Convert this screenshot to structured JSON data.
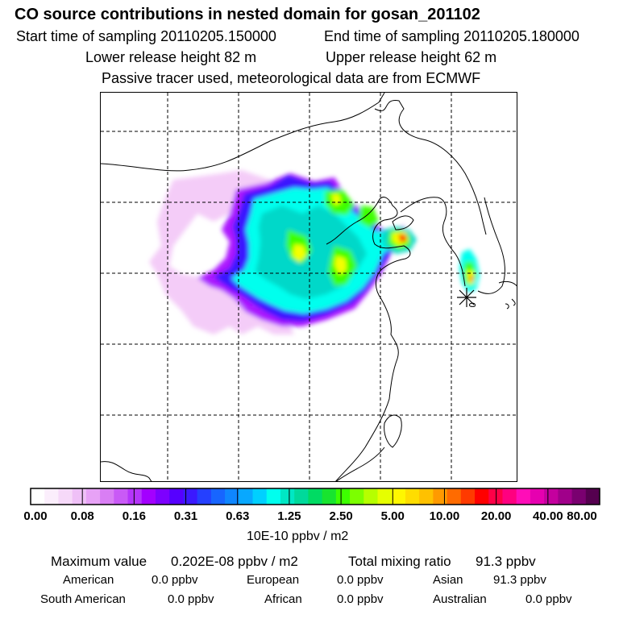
{
  "header": {
    "title": "CO  source contributions in nested domain for gosan_201102",
    "start_time": "Start time of sampling 20110205.150000",
    "end_time": "End time of sampling 20110205.180000",
    "lower_height": "Lower release height   82 m",
    "upper_height": "Upper release height   62 m",
    "tracer_note": "Passive tracer used, meteorological data are from ECMWF"
  },
  "map": {
    "marker_label": "receptor-star",
    "colors": {
      "low": "#f3c7f7",
      "purple": "#a300ff",
      "blue": "#3b19ff",
      "cyan": "#00ffee",
      "aqua": "#00d8c9",
      "green": "#3dff00",
      "yellow": "#f5ff00",
      "red": "#ff0000",
      "magenta": "#ff0080"
    }
  },
  "colorbar": {
    "colors": [
      "#ffffff",
      "#fbeefc",
      "#f6d9f9",
      "#efc0f7",
      "#e7a2f6",
      "#d97ef4",
      "#c95af6",
      "#b535fb",
      "#a300ff",
      "#7d00ff",
      "#5600ff",
      "#3b19ff",
      "#2540ff",
      "#1765ff",
      "#0f86ff",
      "#08a8ff",
      "#00d0ff",
      "#00ffee",
      "#00e7c4",
      "#00d99b",
      "#00db63",
      "#18e42f",
      "#3dff00",
      "#7cff00",
      "#b6ff00",
      "#e6ff00",
      "#fff700",
      "#ffdd00",
      "#ffc100",
      "#ff9a00",
      "#ff6b00",
      "#ff3a00",
      "#ff0000",
      "#ff0047",
      "#ff0080",
      "#ff0db8",
      "#e600b0",
      "#c4009e",
      "#a0008a",
      "#7a0070",
      "#55004f"
    ],
    "ticks": [
      "0.00",
      "0.08",
      "0.16",
      "0.31",
      "0.63",
      "1.25",
      "2.50",
      "5.00",
      "10.00",
      "20.00",
      "40.00",
      "80.00"
    ],
    "unit": "10E-10 ppbv / m2"
  },
  "summary": {
    "max_label": "Maximum value",
    "max_value": "0.202E-08 ppbv / m2",
    "total_label": "Total mixing ratio",
    "total_value": "91.3 ppbv"
  },
  "sources": [
    {
      "name": "American",
      "value": "0.0 ppbv"
    },
    {
      "name": "European",
      "value": "0.0 ppbv"
    },
    {
      "name": "Asian",
      "value": "91.3 ppbv"
    },
    {
      "name": "South American",
      "value": "0.0 ppbv"
    },
    {
      "name": "African",
      "value": "0.0 ppbv"
    },
    {
      "name": "Australian",
      "value": "0.0 ppbv"
    }
  ]
}
